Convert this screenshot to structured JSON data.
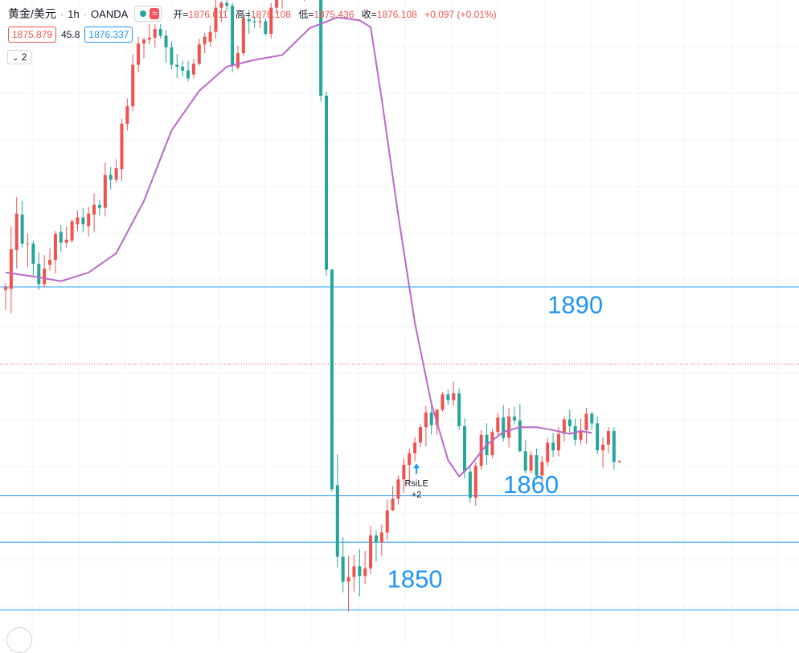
{
  "legend": {
    "symbol": "黄金/美元",
    "interval": "1h",
    "exchange": "OANDA",
    "wave_glyph": "≈",
    "open_key": "开",
    "open": "1876.011",
    "high_key": "高",
    "high": "1876.108",
    "low_key": "低",
    "low": "1875.436",
    "close_key": "收",
    "close": "1876.108",
    "change": "+0.097 (+0.01%)"
  },
  "quote": {
    "bid": "1875.879",
    "spread": "45.8",
    "ask": "1876.337"
  },
  "indicators_toggle": "2",
  "chart_data": {
    "type": "candlestick",
    "instrument": "黄金/美元",
    "interval": "1h",
    "y_range": [
      1847.4,
      1913.8
    ],
    "last_price": 1876.108,
    "candles": [
      [
        1883.8,
        1884.5,
        1881.7,
        1884.1
      ],
      [
        1883.9,
        1890.3,
        1881.4,
        1888.0
      ],
      [
        1887.9,
        1893.4,
        1886.0,
        1891.7
      ],
      [
        1891.6,
        1893.0,
        1888.2,
        1888.6
      ],
      [
        1888.6,
        1889.6,
        1886.2,
        1888.6
      ],
      [
        1888.6,
        1888.9,
        1885.3,
        1886.5
      ],
      [
        1886.5,
        1887.7,
        1883.8,
        1884.4
      ],
      [
        1884.4,
        1887.4,
        1884.1,
        1886.0
      ],
      [
        1886.4,
        1888.1,
        1885.8,
        1886.9
      ],
      [
        1886.9,
        1889.9,
        1885.5,
        1889.6
      ],
      [
        1889.8,
        1890.5,
        1887.7,
        1888.7
      ],
      [
        1888.7,
        1890.4,
        1888.2,
        1889.0
      ],
      [
        1888.9,
        1891.1,
        1888.7,
        1890.9
      ],
      [
        1890.6,
        1892.0,
        1889.9,
        1891.3
      ],
      [
        1891.3,
        1892.3,
        1889.8,
        1890.6
      ],
      [
        1890.4,
        1892.4,
        1889.3,
        1891.7
      ],
      [
        1891.6,
        1893.8,
        1889.8,
        1892.6
      ],
      [
        1892.6,
        1893.1,
        1891.5,
        1892.3
      ],
      [
        1892.3,
        1897.0,
        1891.4,
        1895.7
      ],
      [
        1895.7,
        1896.5,
        1894.2,
        1895.2
      ],
      [
        1895.2,
        1897.3,
        1894.9,
        1896.4
      ],
      [
        1896.3,
        1901.5,
        1895.1,
        1901.0
      ],
      [
        1901.0,
        1903.6,
        1900.3,
        1902.8
      ],
      [
        1902.8,
        1908.2,
        1902.3,
        1907.1
      ],
      [
        1907.1,
        1910.0,
        1906.3,
        1909.3
      ],
      [
        1909.3,
        1909.9,
        1907.8,
        1909.7
      ],
      [
        1909.7,
        1911.3,
        1909.2,
        1909.9
      ],
      [
        1909.9,
        1911.3,
        1908.9,
        1910.8
      ],
      [
        1910.8,
        1911.3,
        1909.8,
        1910.1
      ],
      [
        1910.1,
        1910.7,
        1907.3,
        1908.9
      ],
      [
        1908.9,
        1909.5,
        1906.6,
        1907.1
      ],
      [
        1907.1,
        1908.2,
        1905.7,
        1906.9
      ],
      [
        1906.9,
        1907.5,
        1905.9,
        1906.5
      ],
      [
        1906.5,
        1907.5,
        1905.4,
        1905.7
      ],
      [
        1906.1,
        1907.7,
        1905.7,
        1907.2
      ],
      [
        1907.2,
        1909.8,
        1907.0,
        1909.2
      ],
      [
        1909.2,
        1910.4,
        1908.3,
        1910.0
      ],
      [
        1909.5,
        1911.2,
        1909.0,
        1910.5
      ],
      [
        1910.5,
        1914.5,
        1909.8,
        1913.0
      ],
      [
        1913.0,
        1913.7,
        1911.5,
        1913.5
      ],
      [
        1913.5,
        1914.6,
        1912.6,
        1913.2
      ],
      [
        1913.2,
        1913.5,
        1906.3,
        1907.0
      ],
      [
        1906.8,
        1909.1,
        1906.6,
        1908.3
      ],
      [
        1908.3,
        1912.3,
        1908.0,
        1911.9
      ],
      [
        1911.8,
        1912.8,
        1910.3,
        1911.6
      ],
      [
        1911.6,
        1912.1,
        1910.9,
        1911.5
      ],
      [
        1911.5,
        1912.0,
        1910.9,
        1911.6
      ],
      [
        1911.6,
        1911.9,
        1910.1,
        1910.3
      ],
      [
        1910.3,
        1913.5,
        1909.8,
        1913.0
      ],
      [
        1913.0,
        1915.3,
        1912.4,
        1914.5
      ],
      [
        1914.5,
        1916.3,
        1912.9,
        1915.1
      ],
      [
        1915.1,
        1917.0,
        1915.0,
        1916.9
      ],
      [
        1916.9,
        1917.9,
        1916.7,
        1916.8
      ],
      [
        1916.8,
        1916.8,
        1914.6,
        1914.6
      ],
      [
        1914.4,
        1915.1,
        1913.7,
        1914.8
      ],
      [
        1914.8,
        1916.8,
        1914.3,
        1915.6
      ],
      [
        1915.6,
        1916.1,
        1914.6,
        1915.1
      ],
      [
        1915.1,
        1915.3,
        1903.3,
        1903.9
      ],
      [
        1903.9,
        1904.3,
        1885.3,
        1885.9
      ],
      [
        1885.9,
        1886.0,
        1862.9,
        1863.2
      ],
      [
        1863.6,
        1866.8,
        1855.1,
        1856.2
      ],
      [
        1856.2,
        1858.2,
        1852.5,
        1853.6
      ],
      [
        1853.6,
        1856.3,
        1850.5,
        1854.1
      ],
      [
        1854.1,
        1856.4,
        1852.6,
        1855.2
      ],
      [
        1855.2,
        1857.0,
        1852.1,
        1854.2
      ],
      [
        1854.2,
        1856.8,
        1853.4,
        1855.0
      ],
      [
        1855.0,
        1859.4,
        1854.4,
        1858.4
      ],
      [
        1858.4,
        1858.9,
        1855.7,
        1857.7
      ],
      [
        1857.7,
        1859.5,
        1856.3,
        1858.7
      ],
      [
        1858.7,
        1862.1,
        1857.9,
        1861.0
      ],
      [
        1861.0,
        1863.5,
        1860.9,
        1862.2
      ],
      [
        1862.2,
        1864.6,
        1861.6,
        1864.2
      ],
      [
        1864.2,
        1866.4,
        1862.8,
        1865.7
      ],
      [
        1865.7,
        1867.4,
        1863.8,
        1866.9
      ],
      [
        1866.9,
        1868.6,
        1866.1,
        1868.0
      ],
      [
        1868.0,
        1869.9,
        1867.5,
        1869.6
      ],
      [
        1869.6,
        1871.8,
        1867.6,
        1871.1
      ],
      [
        1871.1,
        1872.4,
        1868.8,
        1869.8
      ],
      [
        1869.8,
        1871.5,
        1868.8,
        1871.4
      ],
      [
        1871.4,
        1873.2,
        1871.2,
        1873.0
      ],
      [
        1873.0,
        1873.5,
        1871.9,
        1872.4
      ],
      [
        1872.4,
        1874.3,
        1871.8,
        1873.1
      ],
      [
        1873.1,
        1873.6,
        1869.3,
        1869.7
      ],
      [
        1869.7,
        1870.5,
        1864.3,
        1865.0
      ],
      [
        1865.0,
        1865.5,
        1861.8,
        1862.3
      ],
      [
        1862.3,
        1866.0,
        1861.5,
        1865.6
      ],
      [
        1865.6,
        1869.3,
        1865.2,
        1868.8
      ],
      [
        1868.8,
        1870.0,
        1865.7,
        1866.7
      ],
      [
        1866.7,
        1869.4,
        1866.4,
        1869.1
      ],
      [
        1869.1,
        1871.1,
        1868.8,
        1870.6
      ],
      [
        1870.6,
        1871.9,
        1868.1,
        1868.5
      ],
      [
        1868.5,
        1871.6,
        1867.5,
        1870.7
      ],
      [
        1870.7,
        1871.7,
        1869.9,
        1870.3
      ],
      [
        1870.3,
        1872.0,
        1867.0,
        1867.1
      ],
      [
        1867.1,
        1868.3,
        1864.8,
        1865.1
      ],
      [
        1865.1,
        1867.1,
        1864.8,
        1866.7
      ],
      [
        1866.7,
        1867.4,
        1864.2,
        1864.6
      ],
      [
        1864.6,
        1866.6,
        1863.7,
        1866.0
      ],
      [
        1866.0,
        1868.5,
        1865.6,
        1868.0
      ],
      [
        1868.0,
        1869.0,
        1866.5,
        1867.2
      ],
      [
        1867.2,
        1869.6,
        1866.6,
        1868.9
      ],
      [
        1868.9,
        1870.7,
        1868.1,
        1870.4
      ],
      [
        1870.4,
        1871.4,
        1869.0,
        1869.7
      ],
      [
        1869.7,
        1870.5,
        1867.7,
        1868.3
      ],
      [
        1868.3,
        1870.5,
        1867.8,
        1869.3
      ],
      [
        1869.3,
        1871.6,
        1867.9,
        1871.0
      ],
      [
        1871.0,
        1871.2,
        1869.4,
        1870.0
      ],
      [
        1870.0,
        1870.7,
        1866.8,
        1867.2
      ],
      [
        1867.2,
        1868.6,
        1865.4,
        1867.8
      ],
      [
        1867.8,
        1869.6,
        1866.9,
        1869.2
      ],
      [
        1869.2,
        1869.6,
        1865.2,
        1866.0
      ],
      [
        1866.0,
        1866.2,
        1865.9,
        1866.1
      ]
    ],
    "moving_average": {
      "color": "#ba68c8",
      "points": [
        [
          0,
          1885.6
        ],
        [
          5,
          1885.2
        ],
        [
          10,
          1884.7
        ],
        [
          15,
          1885.6
        ],
        [
          20,
          1887.6
        ],
        [
          25,
          1893.0
        ],
        [
          30,
          1900.3
        ],
        [
          35,
          1904.4
        ],
        [
          40,
          1906.9
        ],
        [
          45,
          1907.6
        ],
        [
          50,
          1908.1
        ],
        [
          55,
          1910.9
        ],
        [
          60,
          1912.0
        ],
        [
          64,
          1911.7
        ],
        [
          66,
          1911.0
        ],
        [
          68,
          1903.6
        ],
        [
          71,
          1891.5
        ],
        [
          74,
          1880.4
        ],
        [
          77,
          1872.0
        ],
        [
          80,
          1866.2
        ],
        [
          82,
          1864.5
        ],
        [
          84,
          1865.6
        ],
        [
          87,
          1867.8
        ],
        [
          90,
          1869.1
        ],
        [
          93,
          1869.6
        ],
        [
          96,
          1869.6
        ],
        [
          99,
          1869.3
        ],
        [
          102,
          1868.9
        ],
        [
          104,
          1869.2
        ],
        [
          106,
          1869.0
        ]
      ]
    },
    "horizontal_lines": [
      {
        "price": 1884.1,
        "color": "#2196f3",
        "label": ""
      },
      {
        "price": 1862.5,
        "color": "#2196f3",
        "label": ""
      },
      {
        "price": 1857.7,
        "color": "#2196f3",
        "label": ""
      },
      {
        "price": 1850.7,
        "color": "#2196f3",
        "label": ""
      }
    ],
    "price_labels": [
      {
        "text": "1890",
        "price": 1881.4,
        "x_index": 103
      },
      {
        "text": "1860",
        "price": 1862.8,
        "x_index": 95
      },
      {
        "text": "1850",
        "price": 1853.0,
        "x_index": 74
      }
    ],
    "signal": {
      "candle_index": 74,
      "text": "RsiLE",
      "subtext": "+2"
    },
    "colors": {
      "up": "#ef5350",
      "down": "#26a69a",
      "grid": "#f0f3fa",
      "last_price": "#ef5350",
      "hline": "#2196f3"
    }
  }
}
